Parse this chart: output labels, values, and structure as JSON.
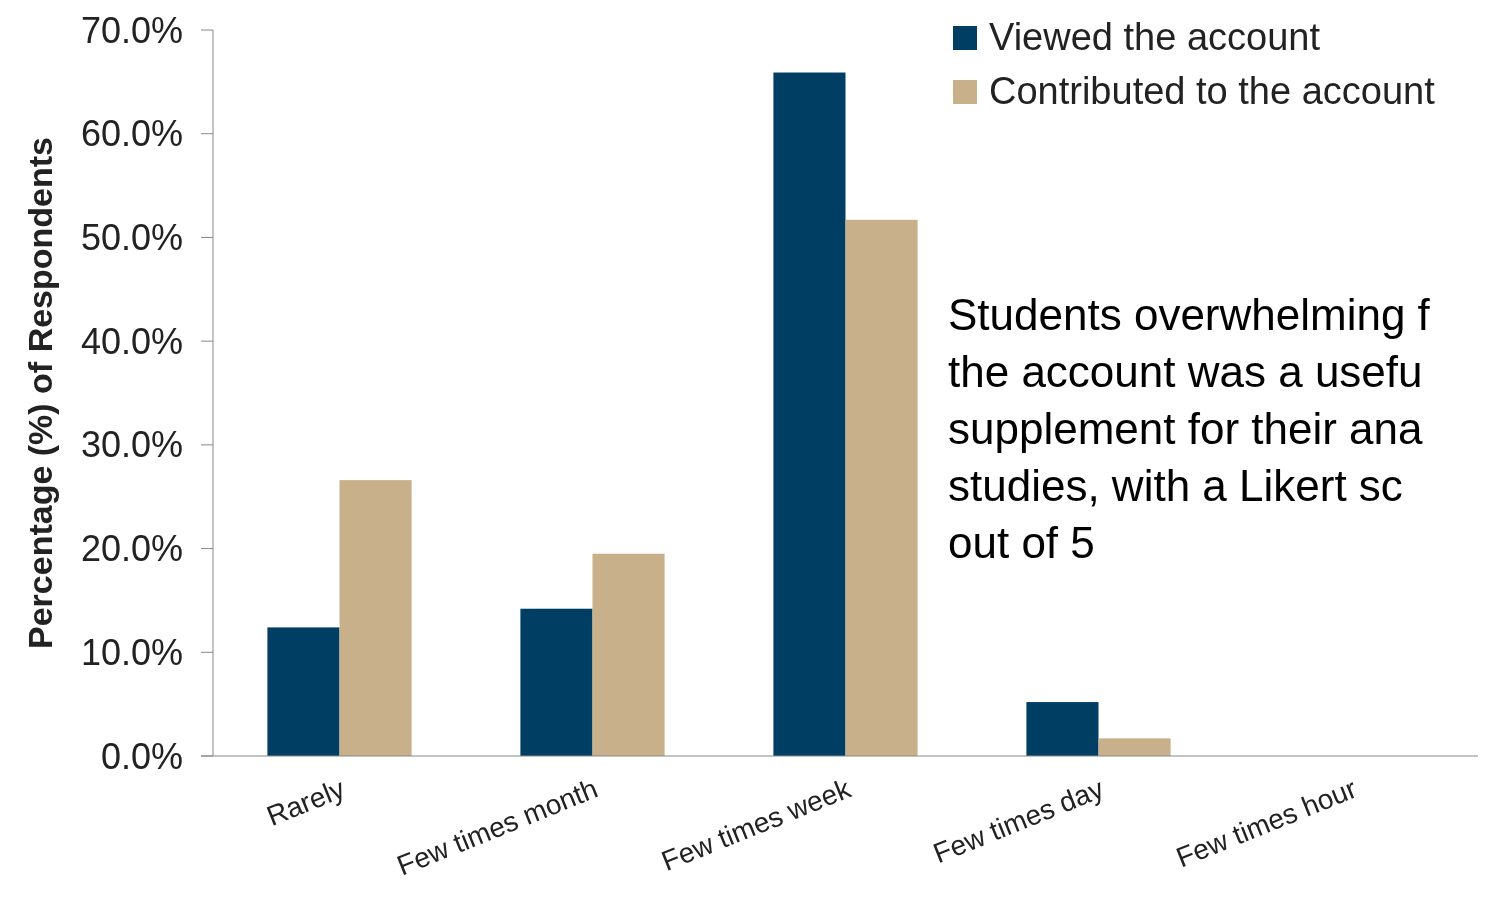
{
  "chart_data": {
    "type": "bar",
    "ylabel": "Percentage (%) of Respondents",
    "categories": [
      "Rarely",
      "Few times month",
      "Few times week",
      "Few times day",
      "Few times hour"
    ],
    "series": [
      {
        "name": "Viewed the account",
        "color": "#003f63",
        "values": [
          12.4,
          14.2,
          65.9,
          5.2,
          0
        ]
      },
      {
        "name": "Contributed to the account",
        "color": "#c8b08a",
        "values": [
          26.6,
          19.5,
          51.7,
          1.7,
          0
        ]
      }
    ],
    "ylim": [
      0,
      70
    ],
    "yticks": [
      {
        "value": 0,
        "label": "0.0%"
      },
      {
        "value": 10,
        "label": "10.0%"
      },
      {
        "value": 20,
        "label": "20.0%"
      },
      {
        "value": 30,
        "label": "30.0%"
      },
      {
        "value": 40,
        "label": "40.0%"
      },
      {
        "value": 50,
        "label": "50.0%"
      },
      {
        "value": 60,
        "label": "60.0%"
      },
      {
        "value": 70,
        "label": "70.0%"
      }
    ],
    "grid": false,
    "legend": "top right",
    "annotations": [
      "Students overwhelming f",
      "the account was a usefu",
      "supplement for their ana",
      "studies, with a Likert sc",
      "out of 5"
    ]
  }
}
